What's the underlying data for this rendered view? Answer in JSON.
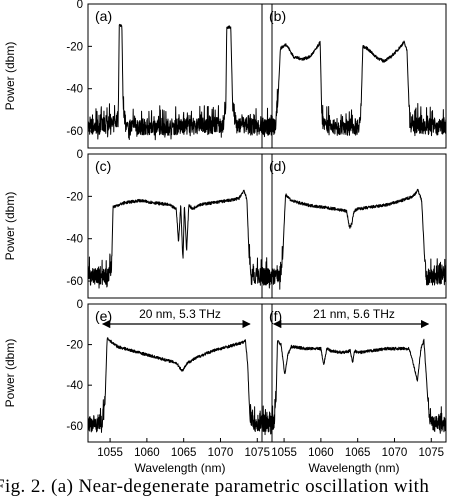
{
  "chart_data": [
    {
      "type": "line",
      "panel_label": "(a)",
      "xlabel": "",
      "ylabel": "Power (dbm)",
      "xlim": [
        1052,
        1077
      ],
      "ylim": [
        -68,
        0
      ],
      "x_ticks": [],
      "y_ticks": [
        0,
        -20,
        -40,
        -60
      ],
      "grid": false,
      "series": [
        {
          "x": [
            1052,
            1055.5,
            1056.1,
            1056.25,
            1056.6,
            1056.8,
            1057.3,
            1065,
            1070.3,
            1070.7,
            1070.85,
            1071.4,
            1071.7,
            1072.3,
            1077
          ],
          "y": [
            -61,
            -60,
            -57,
            -10,
            -10,
            -55,
            -61,
            -61,
            -60,
            -56,
            -11,
            -11,
            -55,
            -61,
            -61
          ]
        }
      ]
    },
    {
      "type": "line",
      "panel_label": "(b)",
      "xlabel": "",
      "ylabel": "",
      "xlim": [
        1052,
        1077
      ],
      "ylim": [
        -68,
        0
      ],
      "x_ticks": [],
      "y_ticks": [],
      "grid": false,
      "series": [
        {
          "x": [
            1052,
            1053.8,
            1054.1,
            1054.5,
            1055.3,
            1056.3,
            1057.5,
            1058.5,
            1059.4,
            1059.9,
            1060.15,
            1060.6,
            1065,
            1065.4,
            1065.7,
            1066.3,
            1067.5,
            1068.5,
            1069.5,
            1070.6,
            1071.3,
            1071.7,
            1072.1,
            1077
          ],
          "y": [
            -61,
            -61,
            -50,
            -21,
            -19,
            -25,
            -26,
            -25,
            -21,
            -18,
            -57,
            -61,
            -61,
            -57,
            -20,
            -21,
            -25,
            -27,
            -25,
            -21,
            -18,
            -22,
            -60,
            -61
          ]
        }
      ]
    },
    {
      "type": "line",
      "panel_label": "(c)",
      "xlabel": "",
      "ylabel": "Power (dbm)",
      "xlim": [
        1052,
        1077
      ],
      "ylim": [
        -68,
        0
      ],
      "x_ticks": [],
      "y_ticks": [
        0,
        -20,
        -40,
        -60
      ],
      "grid": false,
      "series": [
        {
          "x": [
            1052,
            1054.8,
            1055.2,
            1055.4,
            1057,
            1059,
            1061,
            1063,
            1064,
            1064.3,
            1064.6,
            1064.9,
            1065.1,
            1065.4,
            1065.7,
            1066.2,
            1067,
            1069,
            1071,
            1072.5,
            1073.2,
            1073.6,
            1073.9,
            1074.2,
            1077
          ],
          "y": [
            -61,
            -61,
            -55,
            -25,
            -23,
            -22,
            -23,
            -24,
            -26,
            -42,
            -24,
            -51,
            -24,
            -46,
            -24,
            -26,
            -24,
            -23,
            -22,
            -21,
            -17,
            -22,
            -50,
            -61,
            -61
          ]
        }
      ]
    },
    {
      "type": "line",
      "panel_label": "(d)",
      "xlabel": "",
      "ylabel": "",
      "xlim": [
        1052,
        1077
      ],
      "ylim": [
        -68,
        0
      ],
      "x_ticks": [],
      "y_ticks": [],
      "grid": false,
      "series": [
        {
          "x": [
            1052,
            1054.5,
            1054.8,
            1055.2,
            1056,
            1058,
            1060,
            1062,
            1063.5,
            1063.9,
            1064.2,
            1064.5,
            1065,
            1067,
            1069,
            1071,
            1072.5,
            1073.2,
            1073.7,
            1074.1,
            1074.3,
            1077
          ],
          "y": [
            -61,
            -61,
            -50,
            -19,
            -22,
            -24,
            -25,
            -26,
            -27,
            -35,
            -33,
            -27,
            -26,
            -25,
            -24,
            -22,
            -20,
            -17,
            -22,
            -50,
            -61,
            -61
          ]
        }
      ]
    },
    {
      "type": "line",
      "panel_label": "(e)",
      "xlabel": "Wavelength (nm)",
      "ylabel": "Power (dbm)",
      "xlim": [
        1052,
        1077
      ],
      "ylim": [
        -68,
        0
      ],
      "x_ticks": [
        1055,
        1060,
        1065,
        1070,
        1075
      ],
      "y_ticks": [
        0,
        -20,
        -40,
        -60
      ],
      "grid": false,
      "annotation": "20 nm, 5.3 THz",
      "arrow_x": [
        1054,
        1074
      ],
      "series": [
        {
          "x": [
            1052,
            1054,
            1054.3,
            1054.6,
            1056,
            1058,
            1060,
            1062,
            1064,
            1064.8,
            1065.5,
            1067,
            1069,
            1071,
            1073,
            1073.4,
            1073.7,
            1074,
            1074.5,
            1077
          ],
          "y": [
            -62,
            -62,
            -50,
            -17,
            -21,
            -23,
            -25,
            -27,
            -29,
            -33,
            -29,
            -26,
            -23,
            -21,
            -19,
            -18,
            -30,
            -57,
            -62,
            -62
          ]
        }
      ]
    },
    {
      "type": "line",
      "panel_label": "(f)",
      "xlabel": "Wavelength (nm)",
      "ylabel": "",
      "xlim": [
        1052,
        1077
      ],
      "ylim": [
        -68,
        0
      ],
      "x_ticks": [
        1055,
        1060,
        1065,
        1070,
        1075
      ],
      "y_ticks": [],
      "grid": false,
      "annotation": "21 nm, 5.6 THz",
      "arrow_x": [
        1053.6,
        1074.6
      ],
      "series": [
        {
          "x": [
            1052,
            1053.6,
            1053.9,
            1054.1,
            1054.6,
            1055.1,
            1055.5,
            1056,
            1058,
            1060,
            1060.4,
            1060.8,
            1061.3,
            1063,
            1064,
            1064.3,
            1064.6,
            1065,
            1067,
            1069,
            1071,
            1072,
            1072.6,
            1073.1,
            1073.6,
            1074,
            1074.4,
            1074.8,
            1077
          ],
          "y": [
            -62,
            -62,
            -50,
            -18,
            -20,
            -35,
            -25,
            -21,
            -22,
            -22,
            -30,
            -22,
            -23,
            -24,
            -23,
            -29,
            -23,
            -24,
            -23,
            -22,
            -22,
            -22,
            -30,
            -38,
            -22,
            -18,
            -40,
            -62,
            -62
          ]
        }
      ]
    }
  ],
  "caption": "Fig. 2.  (a) Near-degenerate parametric oscillation with"
}
